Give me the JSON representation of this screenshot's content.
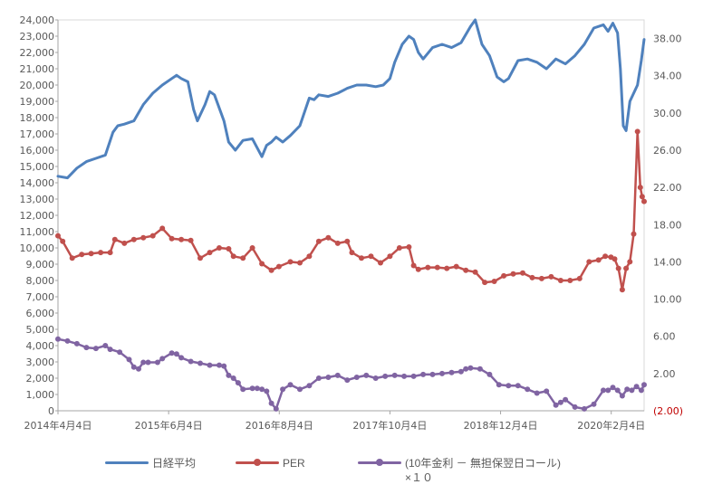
{
  "chart_data": {
    "type": "line",
    "x_tick_labels": [
      "2014年4月4日",
      "2015年6月4日",
      "2016年8月4日",
      "2017年10月4日",
      "2018年12月4日",
      "2020年2月4日"
    ],
    "y_left": {
      "min": 0,
      "max": 24000,
      "step": 1000
    },
    "y_right": {
      "min": -2,
      "max": 40,
      "tick_labels": [
        "(2.00)",
        "2.00",
        "6.00",
        "10.00",
        "14.00",
        "18.00",
        "22.00",
        "26.00",
        "30.00",
        "34.00",
        "38.00"
      ]
    },
    "grid": false,
    "legend_position": "bottom",
    "series": [
      {
        "name": "日経平均",
        "axis": "left",
        "color": "#4f81bd",
        "markers": false,
        "x": [
          2014.25,
          2014.35,
          2014.45,
          2014.55,
          2014.65,
          2014.75,
          2014.83,
          2014.88,
          2014.95,
          2015.05,
          2015.15,
          2015.25,
          2015.35,
          2015.45,
          2015.5,
          2015.55,
          2015.62,
          2015.68,
          2015.72,
          2015.8,
          2015.85,
          2015.9,
          2016.0,
          2016.05,
          2016.12,
          2016.2,
          2016.3,
          2016.4,
          2016.45,
          2016.5,
          2016.55,
          2016.62,
          2016.7,
          2016.8,
          2016.9,
          2016.95,
          2017.0,
          2017.1,
          2017.2,
          2017.3,
          2017.4,
          2017.5,
          2017.6,
          2017.68,
          2017.75,
          2017.8,
          2017.88,
          2017.95,
          2018.0,
          2018.05,
          2018.1,
          2018.2,
          2018.3,
          2018.4,
          2018.5,
          2018.6,
          2018.65,
          2018.72,
          2018.8,
          2018.88,
          2018.95,
          2019.0,
          2019.1,
          2019.2,
          2019.3,
          2019.4,
          2019.5,
          2019.6,
          2019.7,
          2019.8,
          2019.9,
          2020.0,
          2020.05,
          2020.1,
          2020.15,
          2020.18,
          2020.21,
          2020.24,
          2020.28,
          2020.32,
          2020.36,
          2020.4,
          2020.43
        ],
        "y": [
          14400,
          14300,
          14900,
          15300,
          15500,
          15700,
          17100,
          17500,
          17600,
          17800,
          18800,
          19500,
          20000,
          20400,
          20600,
          20400,
          20200,
          18500,
          17800,
          18800,
          19600,
          19400,
          17800,
          16500,
          16000,
          16600,
          16700,
          15600,
          16300,
          16500,
          16800,
          16500,
          16900,
          17500,
          19200,
          19100,
          19400,
          19300,
          19500,
          19800,
          20000,
          20000,
          19900,
          20000,
          20400,
          21400,
          22500,
          23000,
          22800,
          22000,
          21600,
          22300,
          22500,
          22300,
          22600,
          23600,
          24000,
          22500,
          21800,
          20500,
          20200,
          20400,
          21500,
          21600,
          21400,
          21000,
          21600,
          21300,
          21800,
          22500,
          23500,
          23700,
          23300,
          23800,
          23200,
          21000,
          17500,
          17200,
          19000,
          19500,
          20000,
          21500,
          22800
        ]
      },
      {
        "name": "PER",
        "axis": "right",
        "color": "#c0504d",
        "markers": true,
        "x": [
          2014.25,
          2014.3,
          2014.4,
          2014.5,
          2014.6,
          2014.7,
          2014.8,
          2014.85,
          2014.95,
          2015.05,
          2015.15,
          2015.25,
          2015.35,
          2015.45,
          2015.55,
          2015.65,
          2015.75,
          2015.85,
          2015.95,
          2016.05,
          2016.1,
          2016.2,
          2016.3,
          2016.4,
          2016.5,
          2016.58,
          2016.7,
          2016.8,
          2016.9,
          2017.0,
          2017.1,
          2017.2,
          2017.3,
          2017.35,
          2017.45,
          2017.55,
          2017.65,
          2017.75,
          2017.85,
          2017.95,
          2018.0,
          2018.05,
          2018.15,
          2018.25,
          2018.35,
          2018.45,
          2018.55,
          2018.65,
          2018.75,
          2018.85,
          2018.95,
          2019.05,
          2019.15,
          2019.25,
          2019.35,
          2019.45,
          2019.55,
          2019.65,
          2019.75,
          2019.85,
          2019.95,
          2020.02,
          2020.08,
          2020.12,
          2020.16,
          2020.2,
          2020.24,
          2020.28,
          2020.32,
          2020.36,
          2020.39,
          2020.41,
          2020.43
        ],
        "y": [
          16.8,
          16.2,
          14.4,
          14.8,
          14.9,
          15.0,
          15.0,
          16.4,
          16.0,
          16.4,
          16.6,
          16.8,
          17.6,
          16.5,
          16.4,
          16.3,
          14.4,
          15.0,
          15.5,
          15.4,
          14.6,
          14.4,
          15.5,
          13.8,
          13.1,
          13.5,
          14.0,
          13.9,
          14.6,
          16.2,
          16.6,
          16.0,
          16.2,
          15.0,
          14.4,
          14.6,
          13.9,
          14.6,
          15.5,
          15.6,
          13.6,
          13.2,
          13.4,
          13.4,
          13.3,
          13.5,
          13.1,
          12.9,
          11.8,
          11.9,
          12.5,
          12.7,
          12.8,
          12.3,
          12.2,
          12.4,
          12.0,
          12.0,
          12.2,
          14.0,
          14.2,
          14.6,
          14.5,
          14.3,
          13.3,
          11.0,
          13.3,
          14.0,
          17.0,
          28.0,
          22.0,
          21.0,
          20.5
        ]
      },
      {
        "name": "(10年金利 － 無担保翌日コール)\n×１０",
        "axis": "right",
        "color": "#8064a2",
        "markers": true,
        "x": [
          2014.25,
          2014.35,
          2014.45,
          2014.55,
          2014.65,
          2014.75,
          2014.8,
          2014.9,
          2015.0,
          2015.05,
          2015.1,
          2015.15,
          2015.2,
          2015.3,
          2015.35,
          2015.45,
          2015.5,
          2015.55,
          2015.65,
          2015.75,
          2015.85,
          2015.95,
          2016.0,
          2016.05,
          2016.1,
          2016.15,
          2016.2,
          2016.3,
          2016.35,
          2016.4,
          2016.45,
          2016.5,
          2016.55,
          2016.62,
          2016.7,
          2016.8,
          2016.9,
          2017.0,
          2017.1,
          2017.2,
          2017.3,
          2017.4,
          2017.5,
          2017.6,
          2017.7,
          2017.8,
          2017.9,
          2018.0,
          2018.1,
          2018.2,
          2018.3,
          2018.4,
          2018.5,
          2018.55,
          2018.6,
          2018.7,
          2018.8,
          2018.9,
          2019.0,
          2019.1,
          2019.2,
          2019.3,
          2019.4,
          2019.5,
          2019.55,
          2019.6,
          2019.7,
          2019.8,
          2019.9,
          2020.0,
          2020.05,
          2020.1,
          2020.15,
          2020.2,
          2020.25,
          2020.3,
          2020.35,
          2020.4,
          2020.43
        ],
        "y": [
          5.7,
          5.5,
          5.2,
          4.8,
          4.7,
          5.0,
          4.6,
          4.3,
          3.5,
          2.7,
          2.5,
          3.2,
          3.2,
          3.2,
          3.6,
          4.2,
          4.1,
          3.7,
          3.3,
          3.1,
          2.9,
          2.9,
          2.8,
          1.8,
          1.5,
          1.0,
          0.3,
          0.4,
          0.4,
          0.3,
          0.1,
          -1.2,
          -1.8,
          0.3,
          0.8,
          0.3,
          0.7,
          1.5,
          1.6,
          1.8,
          1.3,
          1.6,
          1.8,
          1.5,
          1.7,
          1.8,
          1.7,
          1.7,
          1.9,
          1.9,
          2.0,
          2.1,
          2.2,
          2.5,
          2.6,
          2.5,
          1.9,
          0.8,
          0.7,
          0.7,
          0.3,
          -0.1,
          0.1,
          -1.4,
          -1.1,
          -0.8,
          -1.6,
          -1.8,
          -1.3,
          0.2,
          0.2,
          0.5,
          0.2,
          -0.4,
          0.3,
          0.2,
          0.6,
          0.2,
          0.8
        ]
      }
    ]
  }
}
